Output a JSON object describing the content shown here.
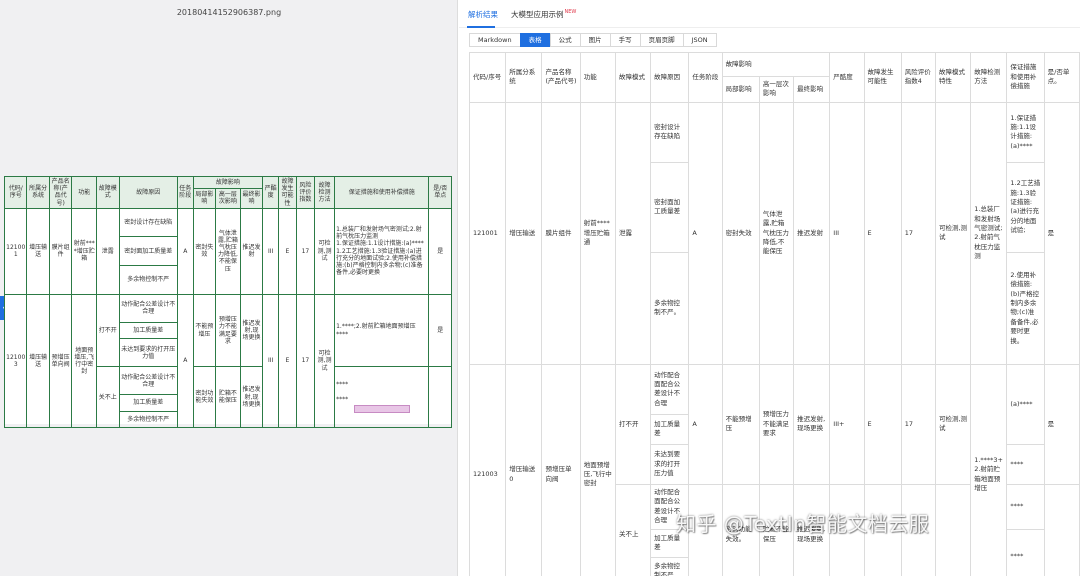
{
  "left": {
    "file_title": "20180414152906387.png",
    "header": {
      "c1": "代码/序号",
      "c2": "所属分系统",
      "c3": "产品名称(产品代号)",
      "c4": "功能",
      "c5": "故障模式",
      "c6": "故障原因",
      "c7": "任务阶段",
      "c8": "故障影响",
      "c8a": "局部影响",
      "c8b": "高一层次影响",
      "c8c": "最终影响",
      "c9": "严酷度",
      "c10": "故障发生可能性",
      "c11": "风险评价指数",
      "c12": "故障检测方法",
      "c13": "保证措施和使用补偿措施",
      "c14": "是/否单点"
    },
    "rows": [
      {
        "code": "121001",
        "sys": "增压输送",
        "prod": "膜片组件",
        "func": "射前****增压贮箱",
        "mode": "泄露",
        "cause1": "密封设计存在缺陷",
        "cause2": "密封面加工质量差",
        "cause3": "多余物控制不严",
        "stage": "A",
        "local": "密封失效",
        "higher": "气体泄露,贮箱气枕压力降低,不能保压",
        "final": "推迟发射",
        "sev": "III",
        "prob": "E",
        "risk": "17",
        "detect": "可检测,测试",
        "method": "1.总装厂和发射场气密测试;2.射前气枕压力监测",
        "measure": "1.保证措施:1.1设计措施:(a)****1.2工艺措施:1.3验证措施:(a)进行充分的地面试验;2.使用补偿措施:(b)严格控制内多余物;(c)准备备件,必要时更换",
        "single": "是"
      },
      {
        "code": "121003",
        "sys": "增压输送",
        "prod": "预增压单向阀",
        "func": "地面预增压,飞行中密封",
        "mode_a": "打不开",
        "mode_b": "关不上",
        "causeA1": "动作配合公差设计不合理",
        "causeA2": "加工质量差",
        "causeA3": "未达到要求的打开压力值",
        "causeB1": "动作配合公差设计不合理",
        "causeB2": "加工质量差",
        "causeB3": "多余物控制不严",
        "stage": "A",
        "localA": "不能预增压",
        "higherA": "预增压力不能满足要求",
        "finalA": "推迟发射,现场更换",
        "localB": "密封功能失效",
        "higherB": "贮箱不能保压",
        "finalB": "推迟发射,现场更换",
        "sev": "III",
        "prob": "E",
        "risk": "17",
        "detect": "可检测,测试",
        "method": "1.****;2.射前贮箱地面预增压",
        "measureA": "****",
        "measureB": "****",
        "measureC": "****",
        "single": "是"
      }
    ]
  },
  "right": {
    "tabs": {
      "parse": "解析结果",
      "demo": "大模型应用示例",
      "new_badge": "NEW"
    },
    "subtabs": [
      "Markdown",
      "表格",
      "公式",
      "图片",
      "手写",
      "页眉页脚",
      "JSON"
    ],
    "header": {
      "c1": "代码/序号",
      "c2": "所属分系统",
      "c3": "产品名称(产品代号)",
      "c4": "功能",
      "c5": "故障模式",
      "c6": "故障原因",
      "c7": "任务阶段",
      "c8": "故障影响",
      "c8a": "局部影响",
      "c8b": "高一层次影响",
      "c8c": "最终影响",
      "c9": "严酷度",
      "c10": "故障发生可能性",
      "c11": "风险评价指数4",
      "c12": "故障模式特性",
      "c13": "故障检测方法",
      "c14": "保证措施和使用补偿措施",
      "c15": "是/否单点。"
    },
    "row1": {
      "code": "121001",
      "sys": "增压输送",
      "prod": "膜片组件",
      "func": "射前****增压贮箱通",
      "mode": "泄露",
      "cause1": "密封设计存在缺陷",
      "cause2": "密封面加工质量差",
      "cause3": "多余物控制不严。",
      "stage": "A",
      "local": "密封失效",
      "higher": "气体泄露,贮箱气枕压力降低,不能保压",
      "final": "推迟发射",
      "sev": "III",
      "prob": "E",
      "risk": "17",
      "feature": "可检测,测试",
      "method": "1.总装厂和发射场气密测试;2.射前气枕压力监测",
      "m1": "1.保证措施:1.1设计措施:(a)****",
      "m2": "1.2工艺措施:1.3验证措施:(a)进行充分的地面试验;",
      "m3": "2.使用补偿措施:(b)严格控制内多余物;(c)准备备件,必要时更换。",
      "single": "是"
    },
    "row2": {
      "code": "121003",
      "sys": "增压输送0",
      "prod": "预增压单向阀",
      "func": "地面预增压,飞行中密封",
      "modeA": "打不开",
      "modeB": "关不上",
      "causeA1": "动作配合面配合公差设计不合理",
      "causeA2": "加工质量差",
      "causeA3": "未达到要求的打开压力值",
      "causeB1": "动作配合面配合公差设计不合理",
      "causeB2": "加工质量差",
      "causeB3": "多余物控制不严",
      "stage": "A",
      "localA": "不能预增压",
      "higherA": "预增压力不能满足要求",
      "finalA": "推迟发射,现场更换",
      "localB": "密封功能失效。",
      "higherB": "贮箱不能保压",
      "finalB": "推迟发射,现场更换",
      "sev": "III+",
      "prob": "E",
      "risk": "17",
      "feature": "可检测,测试",
      "method": "1.****3+2.射前贮箱地面预增压",
      "mA": "(a)****",
      "mB": "****",
      "mC": "****",
      "mD": "****",
      "single": "是"
    },
    "watermark": "知乎 @TextIn智能文档云服"
  }
}
